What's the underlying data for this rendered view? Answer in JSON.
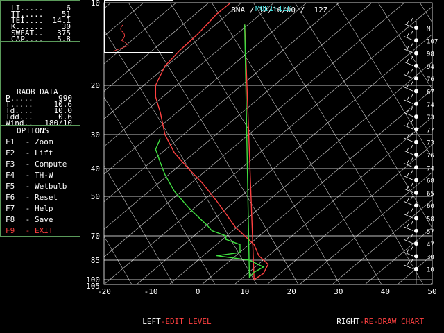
{
  "header": {
    "station": "BNA",
    "date": "12/16/00",
    "time": "12Z",
    "status": "MODIFIED"
  },
  "indices": [
    {
      "label": "LI.....",
      "value": "6"
    },
    {
      "label": "TT.....",
      "value": "51"
    },
    {
      "label": "TEI....",
      "value": "14.1"
    },
    {
      "label": "K......",
      "value": "30"
    },
    {
      "label": "SWEAT..",
      "value": "375"
    },
    {
      "label": "CAP....",
      "value": "5.8"
    }
  ],
  "raob": {
    "title": "RAOB DATA",
    "rows": [
      {
        "label": "P.....",
        "value": "990"
      },
      {
        "label": "T.....",
        "value": "10.6"
      },
      {
        "label": "Td....",
        "value": "10.0"
      },
      {
        "label": "Tdd...",
        "value": "0.6"
      },
      {
        "label": "Wind..",
        "value": "180/10"
      }
    ]
  },
  "options": {
    "title": "OPTIONS",
    "items": [
      {
        "key": "F1",
        "label": "Zoom"
      },
      {
        "key": "F2",
        "label": "Lift"
      },
      {
        "key": "F3",
        "label": "Compute"
      },
      {
        "key": "F4",
        "label": "TH-W"
      },
      {
        "key": "F5",
        "label": "Wetbulb"
      },
      {
        "key": "F6",
        "label": "Reset"
      },
      {
        "key": "F7",
        "label": "Help"
      },
      {
        "key": "F8",
        "label": "Save"
      },
      {
        "key": "F9",
        "label": "EXIT"
      }
    ]
  },
  "footer": {
    "left_key": "LEFT",
    "left_action": "-EDIT LEVEL",
    "right_key": "RIGHT",
    "right_action": "-RE-DRAW CHART"
  },
  "chart_data": {
    "type": "line",
    "title": "",
    "xlabel": "",
    "ylabel": "",
    "x_ticks": [
      "-20",
      "-10",
      "0",
      "10",
      "20",
      "30",
      "40",
      "50"
    ],
    "y_ticks": [
      "10",
      "20",
      "30",
      "40",
      "50",
      "70",
      "85",
      "100",
      "105"
    ],
    "xlim": [
      -20,
      50
    ],
    "ylim": [
      105,
      10
    ],
    "series": [
      {
        "color": "#ff4040",
        "points": [
          [
            10,
            12
          ],
          [
            12,
            100
          ],
          [
            14,
            95
          ],
          [
            15,
            88
          ],
          [
            13,
            82
          ],
          [
            12,
            75
          ],
          [
            10,
            70
          ],
          [
            8,
            65
          ],
          [
            6,
            58
          ],
          [
            4,
            52
          ],
          [
            1,
            45
          ],
          [
            -2,
            40
          ],
          [
            -5,
            35
          ],
          [
            -7,
            30
          ],
          [
            -8,
            25
          ],
          [
            -9,
            22
          ],
          [
            -9,
            20
          ],
          [
            -7,
            17
          ],
          [
            -4,
            15
          ],
          [
            0,
            13
          ],
          [
            4,
            11
          ],
          [
            7,
            10
          ]
        ]
      },
      {
        "color": "#40e040",
        "points": [
          [
            10,
            12
          ],
          [
            11,
            98
          ],
          [
            12,
            94
          ],
          [
            14,
            90
          ],
          [
            11,
            85
          ],
          [
            4,
            82
          ],
          [
            9,
            80
          ],
          [
            9,
            75
          ],
          [
            6,
            72
          ],
          [
            6,
            70
          ],
          [
            3,
            67
          ],
          [
            2,
            64
          ],
          [
            -2,
            55
          ],
          [
            -5,
            48
          ],
          [
            -7,
            42
          ],
          [
            -8,
            38
          ],
          [
            -9,
            34
          ],
          [
            -8,
            31
          ]
        ]
      }
    ],
    "wind_levels": [
      {
        "p": "M"
      },
      {
        "p": "107"
      },
      {
        "p": "98"
      },
      {
        "p": "94"
      },
      {
        "p": "76"
      },
      {
        "p": "67"
      },
      {
        "p": "74"
      },
      {
        "p": "73"
      },
      {
        "p": "77"
      },
      {
        "p": "73"
      },
      {
        "p": "76"
      },
      {
        "p": "74"
      },
      {
        "p": "68"
      },
      {
        "p": "65"
      },
      {
        "p": "60"
      },
      {
        "p": "58"
      },
      {
        "p": "57"
      },
      {
        "p": "47"
      },
      {
        "p": "30"
      },
      {
        "p": "10"
      }
    ]
  }
}
